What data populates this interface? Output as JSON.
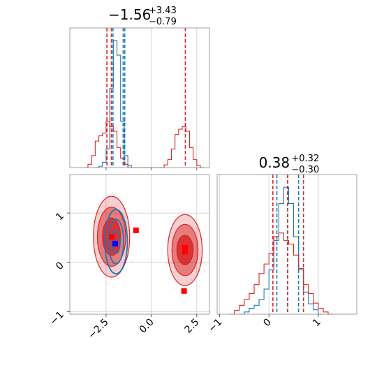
{
  "chart_data": [
    {
      "type": "histogram",
      "panel": "top-left",
      "title": {
        "value": "−1.56",
        "plus": "+3.43",
        "minus": "−0.79"
      },
      "xlim": [
        -4.5,
        3.2
      ],
      "xticks": [
        -2.5,
        0.0,
        2.5
      ],
      "grid": true,
      "series": [
        {
          "color": "#1f77b4",
          "bins": [
            [
              -3.0,
              0
            ],
            [
              -2.8,
              2
            ],
            [
              -2.6,
              8
            ],
            [
              -2.4,
              28
            ],
            [
              -2.2,
              120
            ],
            [
              -2.0,
              192
            ],
            [
              -1.8,
              170
            ],
            [
              -1.6,
              70
            ],
            [
              -1.4,
              18
            ],
            [
              -1.2,
              3
            ],
            [
              -1.0,
              0
            ]
          ],
          "quantiles": [
            -2.12,
            -1.56,
            -1.47
          ]
        },
        {
          "color": "#d62728",
          "bins": [
            [
              -3.6,
              0
            ],
            [
              -3.4,
              5
            ],
            [
              -3.2,
              18
            ],
            [
              -3.0,
              40
            ],
            [
              -2.8,
              48
            ],
            [
              -2.6,
              52
            ],
            [
              -2.4,
              70
            ],
            [
              -2.2,
              62
            ],
            [
              -2.0,
              55
            ],
            [
              -1.8,
              30
            ],
            [
              -1.6,
              14
            ],
            [
              -1.4,
              5
            ],
            [
              -1.2,
              0
            ],
            [
              0.6,
              0
            ],
            [
              0.8,
              4
            ],
            [
              1.0,
              12
            ],
            [
              1.2,
              28
            ],
            [
              1.4,
              50
            ],
            [
              1.6,
              58
            ],
            [
              1.8,
              62
            ],
            [
              2.0,
              55
            ],
            [
              2.2,
              30
            ],
            [
              2.4,
              12
            ],
            [
              2.6,
              3
            ],
            [
              2.8,
              0
            ]
          ],
          "quantiles": [
            -2.45,
            -2.21,
            1.87
          ]
        }
      ]
    },
    {
      "type": "histogram",
      "panel": "bottom-right",
      "title": {
        "value": "0.38",
        "plus": "+0.32",
        "minus": "−0.30"
      },
      "xlim": [
        -1.05,
        1.78
      ],
      "xticks": [
        -1,
        0,
        1
      ],
      "grid": true,
      "series": [
        {
          "color": "#1f77b4",
          "bins": [
            [
              -0.55,
              0
            ],
            [
              -0.45,
              3
            ],
            [
              -0.35,
              8
            ],
            [
              -0.25,
              12
            ],
            [
              -0.15,
              20
            ],
            [
              -0.05,
              34
            ],
            [
              0.05,
              60
            ],
            [
              0.15,
              100
            ],
            [
              0.25,
              150
            ],
            [
              0.35,
              172
            ],
            [
              0.45,
              150
            ],
            [
              0.55,
              105
            ],
            [
              0.65,
              60
            ],
            [
              0.75,
              30
            ],
            [
              0.85,
              14
            ],
            [
              0.95,
              6
            ],
            [
              1.05,
              0
            ]
          ],
          "quantiles": [
            0.16,
            0.38,
            0.6
          ]
        },
        {
          "color": "#d62728",
          "bins": [
            [
              -0.75,
              0
            ],
            [
              -0.65,
              5
            ],
            [
              -0.55,
              12
            ],
            [
              -0.45,
              20
            ],
            [
              -0.35,
              28
            ],
            [
              -0.25,
              40
            ],
            [
              -0.15,
              55
            ],
            [
              -0.05,
              68
            ],
            [
              0.05,
              82
            ],
            [
              0.15,
              105
            ],
            [
              0.25,
              110
            ],
            [
              0.35,
              100
            ],
            [
              0.45,
              95
            ],
            [
              0.55,
              80
            ],
            [
              0.65,
              62
            ],
            [
              0.75,
              40
            ],
            [
              0.85,
              28
            ],
            [
              0.95,
              15
            ],
            [
              1.05,
              8
            ],
            [
              1.15,
              3
            ],
            [
              1.25,
              0
            ]
          ],
          "quantiles": [
            0.08,
            0.38,
            0.7
          ]
        }
      ]
    },
    {
      "type": "contour",
      "panel": "bottom-left",
      "xlim": [
        -4.5,
        3.2
      ],
      "ylim": [
        -1.05,
        1.78
      ],
      "xticks": [
        -2.5,
        0.0,
        2.5
      ],
      "yticks": [
        -1,
        0,
        1
      ],
      "grid": true,
      "series": [
        {
          "color": "#d62728",
          "clusters": [
            {
              "cx": -2.2,
              "cy": 0.52,
              "rx": [
                1.0,
                0.78,
                0.5
              ],
              "ry": [
                0.82,
                0.6,
                0.38
              ]
            },
            {
              "cx": 1.85,
              "cy": 0.25,
              "rx": [
                0.95,
                0.72,
                0.45
              ],
              "ry": [
                0.72,
                0.52,
                0.3
              ]
            }
          ],
          "markers": [
            {
              "x": -2.2,
              "y": 0.52
            },
            {
              "x": -0.85,
              "y": 0.65
            },
            {
              "x": 1.85,
              "y": 0.3
            },
            {
              "x": 1.85,
              "y": 0.22
            },
            {
              "x": 1.8,
              "y": -0.58
            }
          ]
        },
        {
          "color": "#1f77b4",
          "clusters": [
            {
              "cx": -1.95,
              "cy": 0.42,
              "rx": [
                0.62,
                0.42,
                0.22
              ],
              "ry": [
                0.65,
                0.45,
                0.24
              ]
            }
          ],
          "markers": [
            {
              "x": -2.0,
              "y": 0.38
            }
          ]
        }
      ]
    }
  ]
}
